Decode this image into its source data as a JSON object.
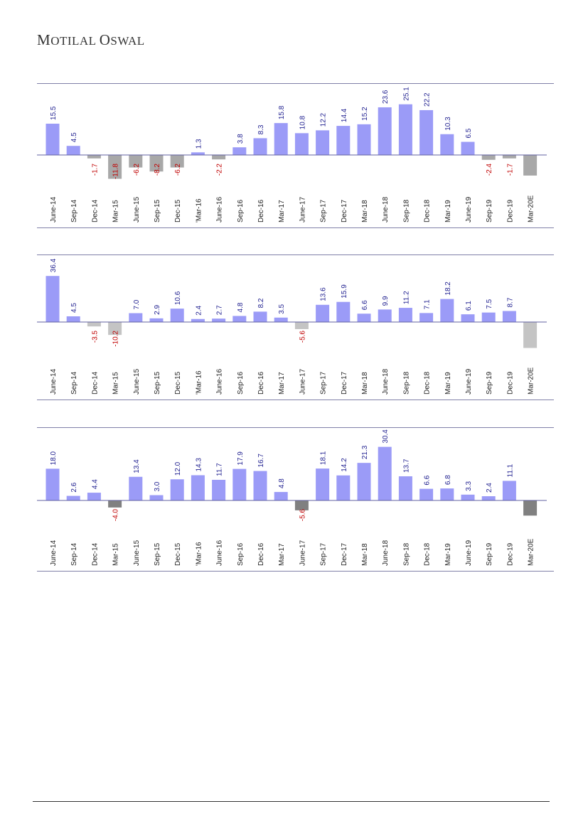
{
  "header": {
    "logo_first_initial": "M",
    "logo_first_rest": "OTILAL",
    "logo_second_initial": "O",
    "logo_second_rest": "SWAL"
  },
  "colors": {
    "positive_bar": "#9b9bf7",
    "negative_bar_chart1": "#a8a8a8",
    "negative_bar_chart2": "#c4c4c4",
    "negative_bar_chart3": "#808080",
    "positive_label": "#1f1f8f",
    "negative_label": "#c00000",
    "axis_line": "#6060a0",
    "frame_line": "#8080a8"
  },
  "chart_data": [
    {
      "type": "bar",
      "categories": [
        "June-14",
        "Sep-14",
        "Dec-14",
        "Mar-15",
        "June-15",
        "Sep-15",
        "Dec-15",
        "'Mar-16",
        "June-16",
        "Sep-16",
        "Dec-16",
        "Mar-17",
        "June-17",
        "Sep-17",
        "Dec-17",
        "Mar-18",
        "June-18",
        "Sep-18",
        "Dec-18",
        "Mar-19",
        "June-19",
        "Sep-19",
        "Dec-19",
        "Mar-20E"
      ],
      "values": [
        15.5,
        4.5,
        -1.7,
        -11.8,
        -6.2,
        -8.2,
        -6.2,
        1.3,
        -2.2,
        3.8,
        8.3,
        15.8,
        10.8,
        12.2,
        14.4,
        15.2,
        23.6,
        25.1,
        22.2,
        10.3,
        6.5,
        -2.4,
        -1.7,
        -10.2
      ],
      "data_labels": [
        "15.5",
        "4.5",
        "-1.7",
        "-11.8",
        "-6.2",
        "-8.2",
        "-6.2",
        "1.3",
        "-2.2",
        "3.8",
        "8.3",
        "15.8",
        "10.8",
        "12.2",
        "14.4",
        "15.2",
        "23.6",
        "25.1",
        "22.2",
        "10.3",
        "6.5",
        "-2.4",
        "-1.7",
        ""
      ],
      "ylim": [
        -12,
        35
      ],
      "grid": false
    },
    {
      "type": "bar",
      "categories": [
        "June-14",
        "Sep-14",
        "Dec-14",
        "Mar-15",
        "June-15",
        "Sep-15",
        "Dec-15",
        "'Mar-16",
        "June-16",
        "Sep-16",
        "Dec-16",
        "Mar-17",
        "June-17",
        "Sep-17",
        "Dec-17",
        "Mar-18",
        "June-18",
        "Sep-18",
        "Dec-18",
        "Mar-19",
        "June-19",
        "Sep-19",
        "Dec-19",
        "Mar-20E"
      ],
      "values": [
        36.4,
        4.5,
        -3.5,
        -10.2,
        7.0,
        2.9,
        10.6,
        2.4,
        2.7,
        4.8,
        8.2,
        3.5,
        -5.6,
        13.6,
        15.9,
        6.6,
        9.9,
        11.2,
        7.1,
        18.2,
        6.1,
        7.5,
        8.7,
        -20.5
      ],
      "data_labels": [
        "36.4",
        "4.5",
        "-3.5",
        "-10.2",
        "7.0",
        "2.9",
        "10.6",
        "2.4",
        "2.7",
        "4.8",
        "8.2",
        "3.5",
        "-5.6",
        "13.6",
        "15.9",
        "6.6",
        "9.9",
        "11.2",
        "7.1",
        "18.2",
        "6.1",
        "7.5",
        "8.7",
        ""
      ],
      "ylim": [
        -22,
        38
      ],
      "grid": false
    },
    {
      "type": "bar",
      "categories": [
        "June-14",
        "Sep-14",
        "Dec-14",
        "Mar-15",
        "June-15",
        "Sep-15",
        "Dec-15",
        "'Mar-16",
        "June-16",
        "Sep-16",
        "Dec-16",
        "Mar-17",
        "June-17",
        "Sep-17",
        "Dec-17",
        "Mar-18",
        "June-18",
        "Sep-18",
        "Dec-18",
        "Mar-19",
        "June-19",
        "Sep-19",
        "Dec-19",
        "Mar-20E"
      ],
      "values": [
        18.0,
        2.6,
        4.4,
        -4.0,
        13.4,
        3.0,
        12.0,
        14.3,
        11.7,
        17.9,
        16.7,
        4.8,
        -5.6,
        18.1,
        14.2,
        21.3,
        30.4,
        13.7,
        6.6,
        6.8,
        3.3,
        2.4,
        11.1,
        -8.6
      ],
      "data_labels": [
        "18.0",
        "2.6",
        "4.4",
        "-4.0",
        "13.4",
        "3.0",
        "12.0",
        "14.3",
        "11.7",
        "17.9",
        "16.7",
        "4.8",
        "-5.6",
        "18.1",
        "14.2",
        "21.3",
        "30.4",
        "13.7",
        "6.6",
        "6.8",
        "3.3",
        "2.4",
        "11.1",
        ""
      ],
      "ylim": [
        -9,
        40
      ],
      "grid": false
    }
  ]
}
